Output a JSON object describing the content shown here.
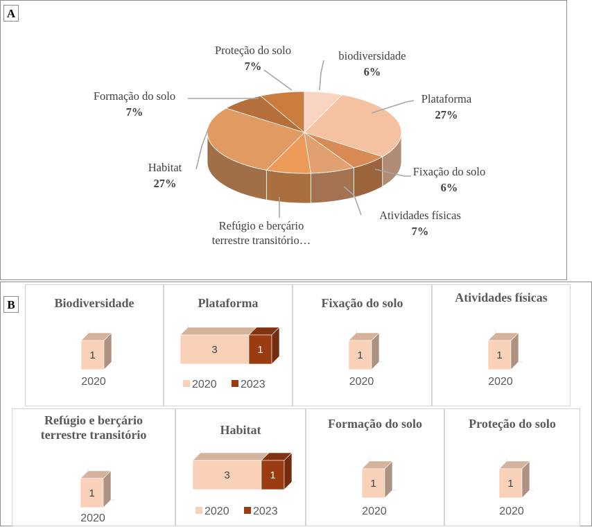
{
  "panel_a": {
    "letter": "A"
  },
  "panel_b": {
    "letter": "B"
  },
  "colors": {
    "c2020": "#f9d1b8",
    "c2023": "#9a3b12"
  },
  "chart_data": [
    {
      "type": "pie",
      "slices": [
        {
          "name": "biodiversidade",
          "value": 6,
          "pct_label": "6%",
          "color": "#f8d3c0"
        },
        {
          "name": "Plataforma",
          "value": 27,
          "pct_label": "27%",
          "color": "#f5c2a1"
        },
        {
          "name": "Fixação do solo",
          "value": 6,
          "pct_label": "6%",
          "color": "#d98b55"
        },
        {
          "name": "Atividades físicas",
          "value": 7,
          "pct_label": "7%",
          "color": "#e2a070"
        },
        {
          "name": "Refúgio e berçário terrestre transitório…",
          "value": 7,
          "pct_label": "",
          "color": "#eb9a58"
        },
        {
          "name": "Habitat",
          "value": 27,
          "pct_label": "27%",
          "color": "#e09a62"
        },
        {
          "name": "Formação do solo",
          "value": 7,
          "pct_label": "7%",
          "color": "#b46f3a"
        },
        {
          "name": "Proteção do solo",
          "value": 7,
          "pct_label": "7%",
          "color": "#ca7c3e"
        }
      ]
    },
    {
      "type": "bar",
      "title": "Biodiversidade",
      "categories": [
        "2020"
      ],
      "series": [
        {
          "name": "2020",
          "values": [
            1
          ]
        }
      ]
    },
    {
      "type": "bar",
      "title": "Plataforma",
      "categories": [
        ""
      ],
      "series": [
        {
          "name": "2020",
          "values": [
            3
          ]
        },
        {
          "name": "2023",
          "values": [
            1
          ]
        }
      ]
    },
    {
      "type": "bar",
      "title": "Fixação do solo",
      "categories": [
        "2020"
      ],
      "series": [
        {
          "name": "2020",
          "values": [
            1
          ]
        }
      ]
    },
    {
      "type": "bar",
      "title": "Atividades físicas",
      "categories": [
        "2020"
      ],
      "series": [
        {
          "name": "2020",
          "values": [
            1
          ]
        }
      ]
    },
    {
      "type": "bar",
      "title": "Refúgio e berçário terrestre transitório",
      "categories": [
        "2020"
      ],
      "series": [
        {
          "name": "2020",
          "values": [
            1
          ]
        }
      ]
    },
    {
      "type": "bar",
      "title": "Habitat",
      "categories": [
        ""
      ],
      "series": [
        {
          "name": "2020",
          "values": [
            3
          ]
        },
        {
          "name": "2023",
          "values": [
            1
          ]
        }
      ]
    },
    {
      "type": "bar",
      "title": "Formação do solo",
      "categories": [
        "2020"
      ],
      "series": [
        {
          "name": "2020",
          "values": [
            1
          ]
        }
      ]
    },
    {
      "type": "bar",
      "title": "Proteção do solo",
      "categories": [
        "2020"
      ],
      "series": [
        {
          "name": "2020",
          "values": [
            1
          ]
        }
      ]
    }
  ]
}
